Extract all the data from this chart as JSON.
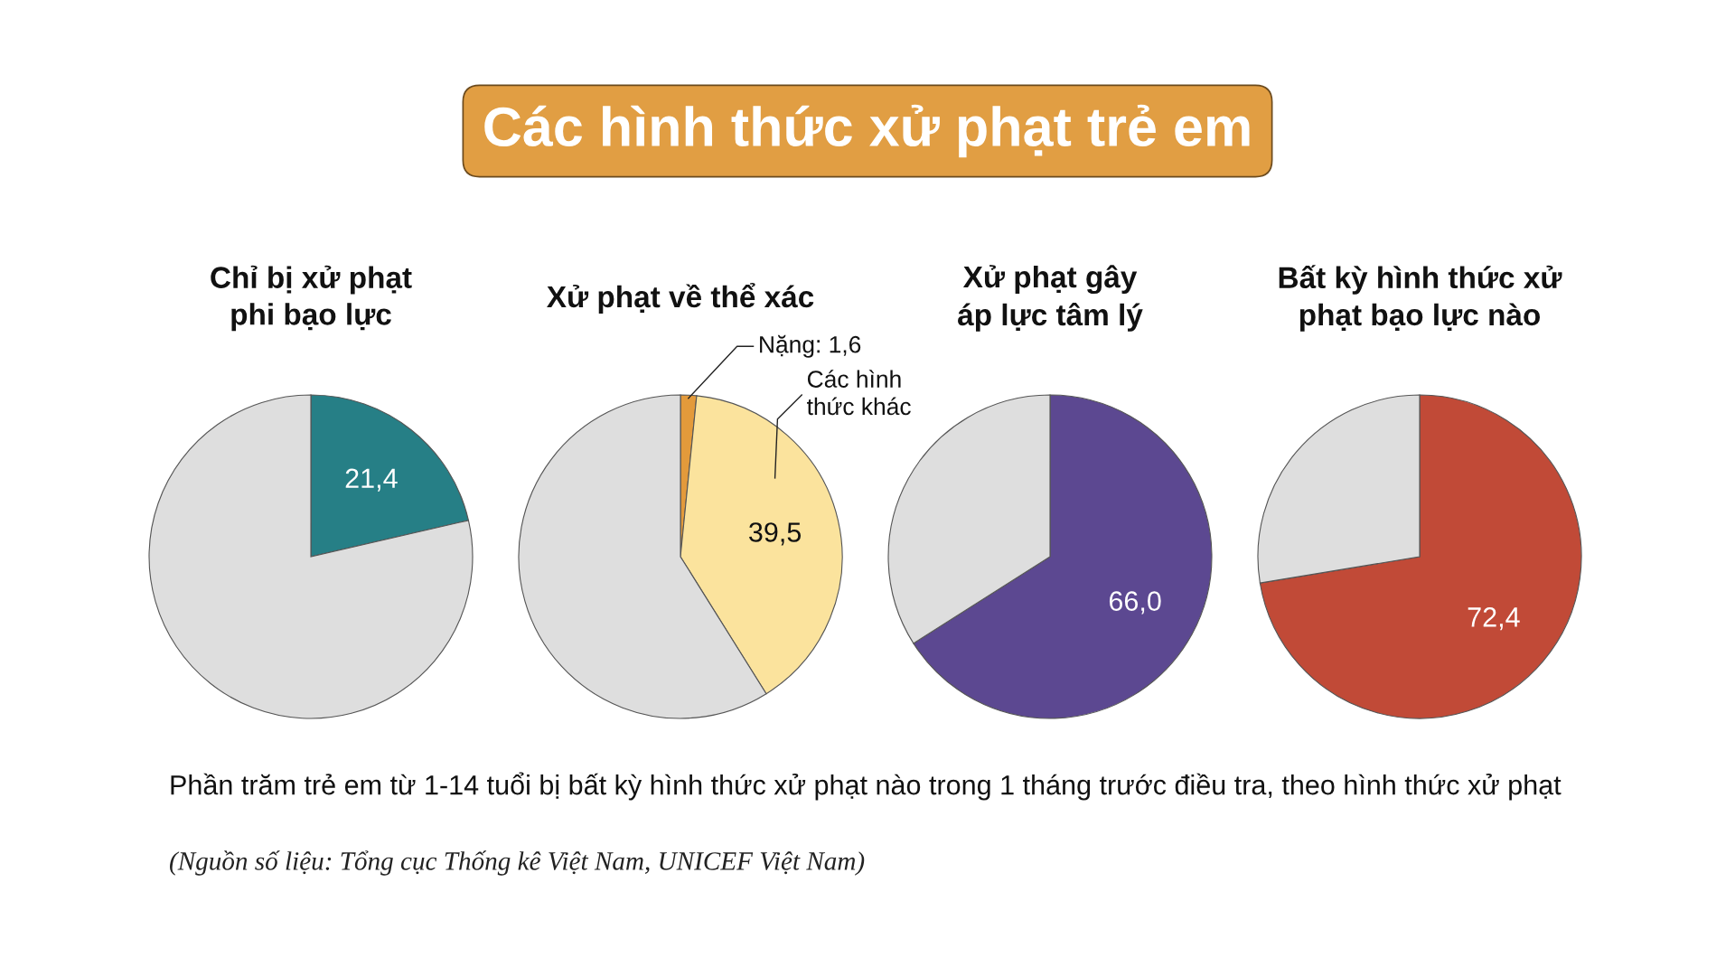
{
  "chart_data": [
    {
      "type": "pie",
      "title": "Chỉ bị xử phạt phi bạo lực",
      "categories": [
        null,
        null
      ],
      "values": [
        21.4,
        78.6
      ],
      "colors": [
        "#267f86",
        "#dedede"
      ],
      "value_labels": [
        "21,4",
        null
      ],
      "legend": false
    },
    {
      "type": "pie",
      "title": "Xử phạt về thể xác",
      "categories": [
        "Nặng",
        "Các hình thức khác",
        null
      ],
      "values": [
        1.6,
        39.5,
        58.9
      ],
      "colors": [
        "#e39a3b",
        "#fbe39d",
        "#dedede"
      ],
      "value_labels": [
        "1,6",
        "39,5",
        null
      ],
      "legend": false
    },
    {
      "type": "pie",
      "title": "Xử phạt gây áp lực tâm lý",
      "categories": [
        null,
        null
      ],
      "values": [
        66.0,
        34.0
      ],
      "colors": [
        "#5c4891",
        "#dedede"
      ],
      "value_labels": [
        "66,0",
        null
      ],
      "legend": false
    },
    {
      "type": "pie",
      "title": "Bất kỳ hình thức xử phạt bạo lực nào",
      "categories": [
        null,
        null
      ],
      "values": [
        72.4,
        27.6
      ],
      "colors": [
        "#c14a37",
        "#dedede"
      ],
      "value_labels": [
        "72,4",
        null
      ],
      "legend": false
    },
    {
      "type": "other",
      "title": "Các hình thức xử phạt trẻ em",
      "annotations": [
        "Phần trăm trẻ em từ 1-14 tuổi bị bất kỳ hình thức xử phạt nào trong 1 tháng trước điều tra, theo hình thức xử phạt",
        "(Nguồn số liệu: Tổng cục Thống kê Việt Nam, UNICEF Việt Nam)"
      ]
    }
  ]
}
